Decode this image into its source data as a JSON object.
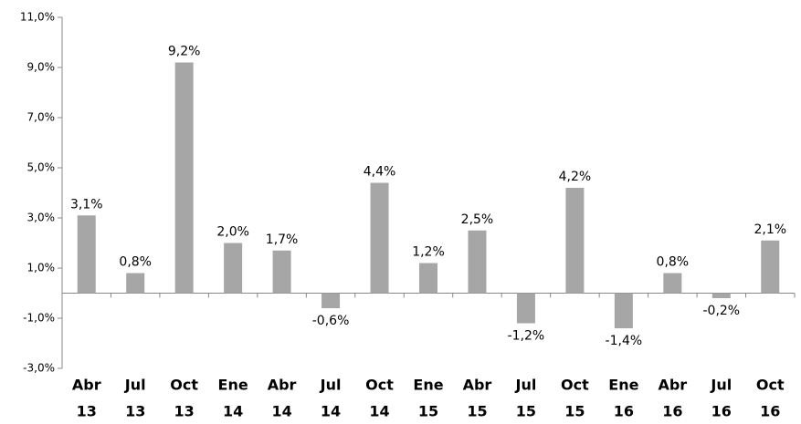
{
  "chart_data": {
    "type": "bar",
    "categories": [
      [
        "Abr",
        "13"
      ],
      [
        "Jul",
        "13"
      ],
      [
        "Oct",
        "13"
      ],
      [
        "Ene",
        "14"
      ],
      [
        "Abr",
        "14"
      ],
      [
        "Jul",
        "14"
      ],
      [
        "Oct",
        "14"
      ],
      [
        "Ene",
        "15"
      ],
      [
        "Abr",
        "15"
      ],
      [
        "Jul",
        "15"
      ],
      [
        "Oct",
        "15"
      ],
      [
        "Ene",
        "16"
      ],
      [
        "Abr",
        "16"
      ],
      [
        "Jul",
        "16"
      ],
      [
        "Oct",
        "16"
      ]
    ],
    "values": [
      3.1,
      0.8,
      9.2,
      2.0,
      1.7,
      -0.6,
      4.4,
      1.2,
      2.5,
      -1.2,
      4.2,
      -1.4,
      0.8,
      -0.2,
      2.1
    ],
    "value_labels": [
      "3,1%",
      "0,8%",
      "9,2%",
      "2,0%",
      "1,7%",
      "-0,6%",
      "4,4%",
      "1,2%",
      "2,5%",
      "-1,2%",
      "4,2%",
      "-1,4%",
      "0,8%",
      "-0,2%",
      "2,1%"
    ],
    "color": "#a6a6a6",
    "ylim": [
      -3,
      11
    ],
    "yticks": [
      {
        "value": -3,
        "label": "-3,0%"
      },
      {
        "value": -1,
        "label": "-1,0%"
      },
      {
        "value": 1,
        "label": "1,0%"
      },
      {
        "value": 3,
        "label": "3,0%"
      },
      {
        "value": 5,
        "label": "5,0%"
      },
      {
        "value": 7,
        "label": "7,0%"
      },
      {
        "value": 9,
        "label": "9,0%"
      },
      {
        "value": 11,
        "label": "11,0%"
      }
    ],
    "grid": false
  }
}
